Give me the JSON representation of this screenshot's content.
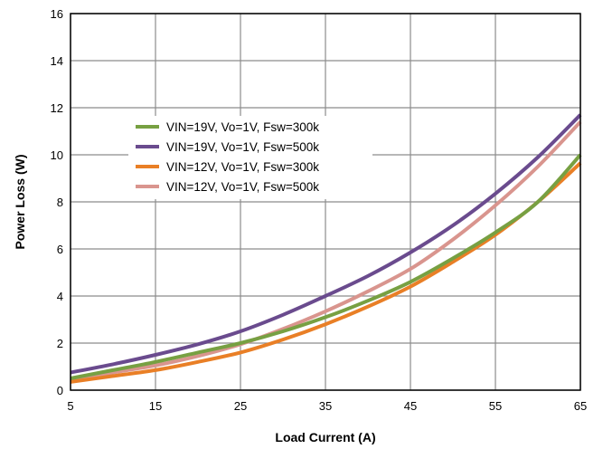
{
  "chart_data": {
    "type": "line",
    "xlabel": "Load Current (A)",
    "ylabel": "Power Loss (W)",
    "xlim": [
      5,
      65
    ],
    "ylim": [
      0,
      16
    ],
    "xticks": [
      5,
      15,
      25,
      35,
      45,
      55,
      65
    ],
    "yticks": [
      0,
      2,
      4,
      6,
      8,
      10,
      12,
      14,
      16
    ],
    "grid": true,
    "legend_position": "upper-left (inside plot)",
    "x": [
      5,
      10,
      15,
      20,
      25,
      30,
      35,
      40,
      45,
      50,
      55,
      60,
      65
    ],
    "series": [
      {
        "name": "VIN=19V, Vo=1V, Fsw=300k",
        "color": "#77a042",
        "values": [
          0.5,
          0.85,
          1.2,
          1.6,
          2.0,
          2.5,
          3.1,
          3.8,
          4.6,
          5.6,
          6.7,
          8.0,
          10.0
        ]
      },
      {
        "name": "VIN=19V, Vo=1V, Fsw=500k",
        "color": "#6a4b8e",
        "values": [
          0.75,
          1.1,
          1.5,
          1.95,
          2.5,
          3.2,
          4.0,
          4.85,
          5.85,
          7.0,
          8.35,
          9.9,
          11.7
        ]
      },
      {
        "name": "VIN=12V, Vo=1V, Fsw=300k",
        "color": "#e97f26",
        "values": [
          0.35,
          0.6,
          0.85,
          1.2,
          1.6,
          2.15,
          2.8,
          3.55,
          4.4,
          5.45,
          6.6,
          8.0,
          9.65
        ]
      },
      {
        "name": "VIN=12V, Vo=1V, Fsw=500k",
        "color": "#d9958e",
        "values": [
          0.45,
          0.75,
          1.05,
          1.45,
          1.95,
          2.6,
          3.35,
          4.2,
          5.15,
          6.4,
          7.85,
          9.5,
          11.4
        ]
      }
    ]
  }
}
